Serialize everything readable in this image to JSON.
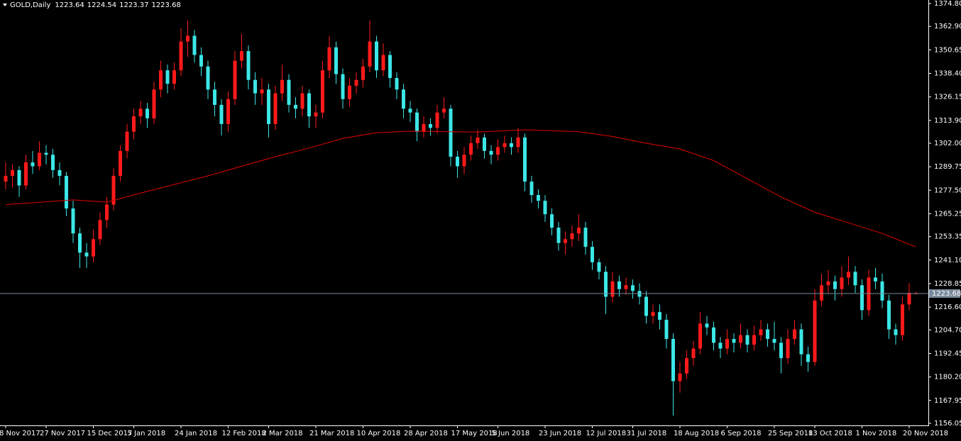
{
  "chart_data": {
    "type": "candlestick",
    "title": "GOLD,Daily",
    "up_color": "#ff1a1a",
    "down_color": "#3ce6e6",
    "ylim": [
      1156.05,
      1374.8
    ],
    "yticks": [
      {
        "value": 1374.8,
        "label": "1374.80"
      },
      {
        "value": 1362.9,
        "label": "1362.90"
      },
      {
        "value": 1350.65,
        "label": "1350.65"
      },
      {
        "value": 1338.4,
        "label": "1338.40"
      },
      {
        "value": 1326.15,
        "label": "1326.15"
      },
      {
        "value": 1313.9,
        "label": "1313.90"
      },
      {
        "value": 1302,
        "label": "1302.00"
      },
      {
        "value": 1289.75,
        "label": "1289.75"
      },
      {
        "value": 1277.5,
        "label": "1277.50"
      },
      {
        "value": 1265.25,
        "label": "1265.25"
      },
      {
        "value": 1253.35,
        "label": "1253.35"
      },
      {
        "value": 1241.1,
        "label": "1241.10"
      },
      {
        "value": 1228.85,
        "label": "1228.85"
      },
      {
        "value": 1216.6,
        "label": "1216.60"
      },
      {
        "value": 1204.7,
        "label": "1204.70"
      },
      {
        "value": 1192.45,
        "label": "1192.45"
      },
      {
        "value": 1180.2,
        "label": "1180.20"
      },
      {
        "value": 1167.95,
        "label": "1167.95"
      },
      {
        "value": 1156.05,
        "label": "1156.05"
      }
    ],
    "categories": [
      "8 Nov 2017",
      null,
      null,
      null,
      null,
      null,
      "27 Nov 2017",
      null,
      null,
      null,
      null,
      null,
      null,
      "15 Dec 2017",
      null,
      null,
      null,
      null,
      null,
      "5 Jan 2018",
      null,
      null,
      null,
      null,
      null,
      null,
      "24 Jan 2018",
      null,
      null,
      null,
      null,
      null,
      null,
      "12 Feb 2018",
      null,
      null,
      null,
      null,
      null,
      "2 Mar 2018",
      null,
      null,
      null,
      null,
      null,
      null,
      "21 Mar 2018",
      null,
      null,
      null,
      null,
      null,
      null,
      "10 Apr 2018",
      null,
      null,
      null,
      null,
      null,
      null,
      "28 Apr 2018",
      null,
      null,
      null,
      null,
      null,
      null,
      "17 May 2018",
      null,
      null,
      null,
      null,
      null,
      "5 Jun 2018",
      null,
      null,
      null,
      null,
      null,
      null,
      "23 Jun 2018",
      null,
      null,
      null,
      null,
      null,
      null,
      "12 Jul 2018",
      null,
      null,
      null,
      null,
      null,
      "31 Jul 2018",
      null,
      null,
      null,
      null,
      null,
      null,
      "18 Aug 2018",
      null,
      null,
      null,
      null,
      null,
      null,
      "6 Sep 2018",
      null,
      null,
      null,
      null,
      null,
      null,
      "25 Sep 2018",
      null,
      null,
      null,
      null,
      null,
      "13 Oct 2018",
      null,
      null,
      null,
      null,
      null,
      null,
      "1 Nov 2018",
      null,
      null,
      null,
      null,
      null,
      null,
      "20 Nov 2018",
      null
    ],
    "ohlc": [
      [
        1282,
        1292,
        1278,
        1285
      ],
      [
        1285,
        1291,
        1279,
        1288
      ],
      [
        1288,
        1290,
        1274,
        1280
      ],
      [
        1280,
        1296,
        1278,
        1292
      ],
      [
        1292,
        1298,
        1286,
        1290
      ],
      [
        1290,
        1303,
        1288,
        1297
      ],
      [
        1297,
        1301,
        1291,
        1296
      ],
      [
        1296,
        1299,
        1284,
        1288
      ],
      [
        1288,
        1292,
        1280,
        1285
      ],
      [
        1285,
        1287,
        1264,
        1268
      ],
      [
        1268,
        1272,
        1250,
        1255
      ],
      [
        1255,
        1258,
        1237,
        1245
      ],
      [
        1245,
        1250,
        1237,
        1243
      ],
      [
        1243,
        1257,
        1240,
        1252
      ],
      [
        1252,
        1266,
        1249,
        1262
      ],
      [
        1262,
        1274,
        1258,
        1270
      ],
      [
        1270,
        1289,
        1267,
        1285
      ],
      [
        1285,
        1301,
        1282,
        1298
      ],
      [
        1298,
        1312,
        1294,
        1308
      ],
      [
        1308,
        1320,
        1304,
        1316
      ],
      [
        1316,
        1324,
        1312,
        1320
      ],
      [
        1320,
        1323,
        1310,
        1315
      ],
      [
        1315,
        1334,
        1312,
        1330
      ],
      [
        1330,
        1345,
        1326,
        1340
      ],
      [
        1340,
        1343,
        1328,
        1333
      ],
      [
        1333,
        1344,
        1330,
        1340
      ],
      [
        1340,
        1362,
        1337,
        1355
      ],
      [
        1355,
        1366,
        1347,
        1358
      ],
      [
        1358,
        1361,
        1344,
        1348
      ],
      [
        1348,
        1352,
        1337,
        1342
      ],
      [
        1342,
        1345,
        1325,
        1330
      ],
      [
        1330,
        1334,
        1316,
        1322
      ],
      [
        1322,
        1325,
        1306,
        1312
      ],
      [
        1312,
        1329,
        1308,
        1325
      ],
      [
        1325,
        1350,
        1322,
        1345
      ],
      [
        1345,
        1359,
        1341,
        1350
      ],
      [
        1350,
        1353,
        1330,
        1335
      ],
      [
        1335,
        1339,
        1322,
        1328
      ],
      [
        1328,
        1336,
        1322,
        1330
      ],
      [
        1330,
        1333,
        1305,
        1312
      ],
      [
        1312,
        1332,
        1309,
        1328
      ],
      [
        1328,
        1343,
        1324,
        1335
      ],
      [
        1335,
        1338,
        1318,
        1322
      ],
      [
        1322,
        1326,
        1315,
        1320
      ],
      [
        1320,
        1332,
        1316,
        1328
      ],
      [
        1328,
        1330,
        1310,
        1316
      ],
      [
        1316,
        1322,
        1310,
        1318
      ],
      [
        1318,
        1345,
        1315,
        1340
      ],
      [
        1340,
        1358,
        1336,
        1352
      ],
      [
        1352,
        1355,
        1333,
        1338
      ],
      [
        1338,
        1341,
        1320,
        1325
      ],
      [
        1325,
        1336,
        1321,
        1332
      ],
      [
        1332,
        1339,
        1328,
        1335
      ],
      [
        1335,
        1346,
        1331,
        1342
      ],
      [
        1342,
        1366,
        1339,
        1355
      ],
      [
        1355,
        1358,
        1336,
        1340
      ],
      [
        1340,
        1354,
        1337,
        1348
      ],
      [
        1348,
        1350,
        1331,
        1336
      ],
      [
        1336,
        1339,
        1325,
        1330
      ],
      [
        1330,
        1333,
        1315,
        1320
      ],
      [
        1320,
        1324,
        1313,
        1318
      ],
      [
        1318,
        1320,
        1303,
        1308
      ],
      [
        1308,
        1316,
        1305,
        1312
      ],
      [
        1312,
        1315,
        1306,
        1310
      ],
      [
        1310,
        1322,
        1307,
        1318
      ],
      [
        1318,
        1326,
        1315,
        1320
      ],
      [
        1320,
        1322,
        1290,
        1295
      ],
      [
        1295,
        1298,
        1284,
        1290
      ],
      [
        1290,
        1300,
        1286,
        1296
      ],
      [
        1296,
        1306,
        1293,
        1302
      ],
      [
        1302,
        1309,
        1299,
        1305
      ],
      [
        1305,
        1307,
        1294,
        1298
      ],
      [
        1298,
        1301,
        1291,
        1296
      ],
      [
        1296,
        1304,
        1293,
        1300
      ],
      [
        1300,
        1306,
        1297,
        1302
      ],
      [
        1302,
        1305,
        1296,
        1300
      ],
      [
        1300,
        1310,
        1297,
        1305
      ],
      [
        1305,
        1307,
        1277,
        1282
      ],
      [
        1282,
        1285,
        1271,
        1275
      ],
      [
        1275,
        1278,
        1268,
        1272
      ],
      [
        1272,
        1275,
        1261,
        1265
      ],
      [
        1265,
        1268,
        1254,
        1258
      ],
      [
        1258,
        1261,
        1246,
        1250
      ],
      [
        1250,
        1256,
        1244,
        1252
      ],
      [
        1252,
        1259,
        1248,
        1255
      ],
      [
        1255,
        1265,
        1251,
        1258
      ],
      [
        1258,
        1261,
        1244,
        1248
      ],
      [
        1248,
        1251,
        1236,
        1240
      ],
      [
        1240,
        1242,
        1231,
        1235
      ],
      [
        1235,
        1238,
        1213,
        1222
      ],
      [
        1222,
        1235,
        1219,
        1230
      ],
      [
        1230,
        1233,
        1222,
        1226
      ],
      [
        1226,
        1232,
        1223,
        1228
      ],
      [
        1228,
        1231,
        1221,
        1225
      ],
      [
        1225,
        1229,
        1218,
        1222
      ],
      [
        1222,
        1225,
        1208,
        1212
      ],
      [
        1212,
        1218,
        1208,
        1214
      ],
      [
        1214,
        1218,
        1205,
        1210
      ],
      [
        1210,
        1213,
        1195,
        1200
      ],
      [
        1200,
        1203,
        1160,
        1178
      ],
      [
        1178,
        1188,
        1172,
        1182
      ],
      [
        1182,
        1194,
        1179,
        1190
      ],
      [
        1190,
        1199,
        1186,
        1195
      ],
      [
        1195,
        1214,
        1192,
        1208
      ],
      [
        1208,
        1212,
        1202,
        1206
      ],
      [
        1206,
        1209,
        1194,
        1198
      ],
      [
        1198,
        1201,
        1190,
        1195
      ],
      [
        1195,
        1205,
        1192,
        1200
      ],
      [
        1200,
        1203,
        1193,
        1198
      ],
      [
        1198,
        1208,
        1195,
        1202
      ],
      [
        1202,
        1205,
        1193,
        1197
      ],
      [
        1197,
        1207,
        1194,
        1202
      ],
      [
        1202,
        1210,
        1199,
        1205
      ],
      [
        1205,
        1208,
        1196,
        1200
      ],
      [
        1200,
        1209,
        1194,
        1198
      ],
      [
        1198,
        1201,
        1182,
        1190
      ],
      [
        1190,
        1205,
        1187,
        1200
      ],
      [
        1200,
        1210,
        1197,
        1205
      ],
      [
        1205,
        1208,
        1186,
        1192
      ],
      [
        1192,
        1196,
        1183,
        1188
      ],
      [
        1188,
        1226,
        1186,
        1220
      ],
      [
        1220,
        1234,
        1217,
        1228
      ],
      [
        1228,
        1236,
        1224,
        1230
      ],
      [
        1230,
        1233,
        1220,
        1226
      ],
      [
        1226,
        1238,
        1222,
        1232
      ],
      [
        1232,
        1243,
        1228,
        1235
      ],
      [
        1235,
        1238,
        1224,
        1228
      ],
      [
        1228,
        1231,
        1210,
        1215
      ],
      [
        1215,
        1236,
        1212,
        1232
      ],
      [
        1232,
        1237,
        1226,
        1230
      ],
      [
        1230,
        1234,
        1216,
        1220
      ],
      [
        1220,
        1223,
        1200,
        1205
      ],
      [
        1205,
        1208,
        1197,
        1202
      ],
      [
        1202,
        1222,
        1199,
        1218
      ],
      [
        1218,
        1229,
        1215,
        1224
      ],
      [
        1223.64,
        1224.54,
        1223.37,
        1223.68
      ]
    ],
    "moving_average": {
      "color": "#e00000",
      "x": [
        0,
        10,
        15,
        20,
        30,
        40,
        45,
        50,
        55,
        60,
        70,
        77,
        85,
        90,
        95,
        100,
        105,
        110,
        115,
        120,
        125,
        130,
        135
      ],
      "values": [
        1270,
        1272.5,
        1271.3,
        1276,
        1285,
        1295,
        1299.5,
        1304.5,
        1307.5,
        1308.3,
        1307.8,
        1309,
        1308,
        1305.5,
        1302,
        1299,
        1293,
        1283.5,
        1274,
        1266,
        1260.5,
        1255,
        1248
      ]
    },
    "price_line_color": "#7a8a9c"
  }
}
